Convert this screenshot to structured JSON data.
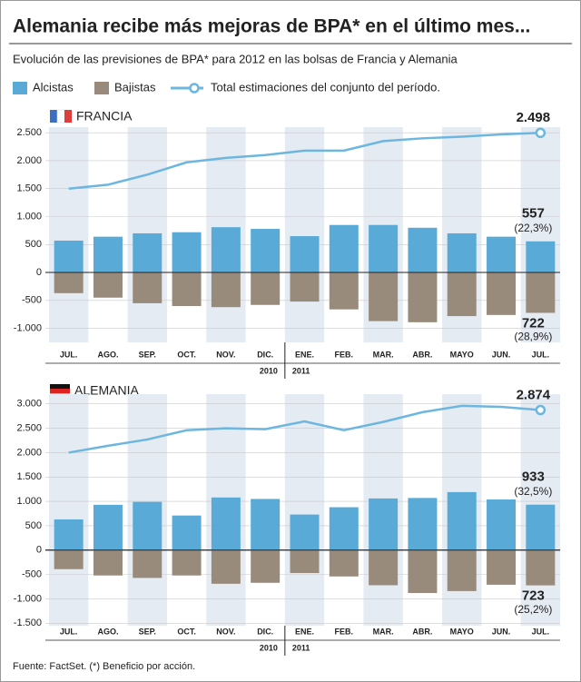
{
  "title": "Alemania recibe más mejoras de BPA* en el último mes...",
  "subtitle": "Evolución de las previsiones de BPA* para 2012 en las bolsas de Francia y Alemania",
  "source": "Fuente: FactSet. (*) Beneficio por acción.",
  "years": [
    "2010",
    "2011"
  ],
  "chart_data": [
    {
      "type": "bar-line",
      "title": "FRANCIA",
      "categories": [
        "JUL.",
        "AGO.",
        "SEP.",
        "OCT.",
        "NOV.",
        "DIC.",
        "ENE.",
        "FEB.",
        "MAR.",
        "ABR.",
        "MAYO",
        "JUN.",
        "JUL."
      ],
      "series": [
        {
          "name": "Alcistas",
          "color": "#5aaad8",
          "values": [
            570,
            640,
            700,
            720,
            810,
            780,
            650,
            850,
            850,
            800,
            700,
            640,
            557
          ]
        },
        {
          "name": "Bajistas",
          "color": "#988b7c",
          "values": [
            -370,
            -450,
            -550,
            -600,
            -620,
            -580,
            -520,
            -660,
            -870,
            -890,
            -780,
            -760,
            -722
          ]
        },
        {
          "name": "Total estimaciones del conjunto del período.",
          "color": "#6db6df",
          "values": [
            1500,
            1570,
            1750,
            1970,
            2050,
            2100,
            2180,
            2180,
            2350,
            2400,
            2430,
            2470,
            2498
          ]
        }
      ],
      "annotations": [
        "2.498",
        "557",
        "(22,3%)",
        "722",
        "(28,9%)"
      ],
      "ylim": [
        -1250,
        2600
      ],
      "yticks": [
        {
          "value": 2500,
          "label": "2.500"
        },
        {
          "value": 2000,
          "label": "2.000"
        },
        {
          "value": 1500,
          "label": "1.500"
        },
        {
          "value": 1000,
          "label": "1.000"
        },
        500,
        0,
        -500,
        {
          "value": -1000,
          "label": "-1.000"
        }
      ],
      "grid": true
    },
    {
      "type": "bar-line",
      "title": "ALEMANIA",
      "categories": [
        "JUL.",
        "AGO.",
        "SEP.",
        "OCT.",
        "NOV.",
        "DIC.",
        "ENE.",
        "FEB.",
        "MAR.",
        "ABR.",
        "MAYO",
        "JUN.",
        "JUL."
      ],
      "series": [
        {
          "color": "#5aaad8",
          "values": [
            630,
            930,
            990,
            710,
            1080,
            1050,
            730,
            880,
            1060,
            1070,
            1190,
            1040,
            933
          ]
        },
        {
          "color": "#988b7c",
          "values": [
            -390,
            -520,
            -570,
            -520,
            -690,
            -670,
            -470,
            -540,
            -720,
            -880,
            -840,
            -710,
            -723
          ]
        },
        {
          "color": "#6db6df",
          "values": [
            2000,
            2140,
            2270,
            2460,
            2500,
            2480,
            2640,
            2460,
            2630,
            2830,
            2960,
            2940,
            2874
          ]
        }
      ],
      "annotations": [
        "2.874",
        "933",
        "(32,5%)",
        "723",
        "(25,2%)"
      ],
      "ylim": [
        -1550,
        3200
      ],
      "yticks": [
        {
          "value": 3000,
          "label": "3.000"
        },
        {
          "value": 2500,
          "label": "2.500"
        },
        {
          "value": 2000,
          "label": "2.000"
        },
        {
          "value": 1500,
          "label": "1.500"
        },
        {
          "value": 1000,
          "label": "1.000"
        },
        500,
        0,
        -500,
        {
          "value": -1000,
          "label": "-1.000"
        },
        {
          "value": -1500,
          "label": "-1.500"
        }
      ],
      "grid": true
    }
  ]
}
